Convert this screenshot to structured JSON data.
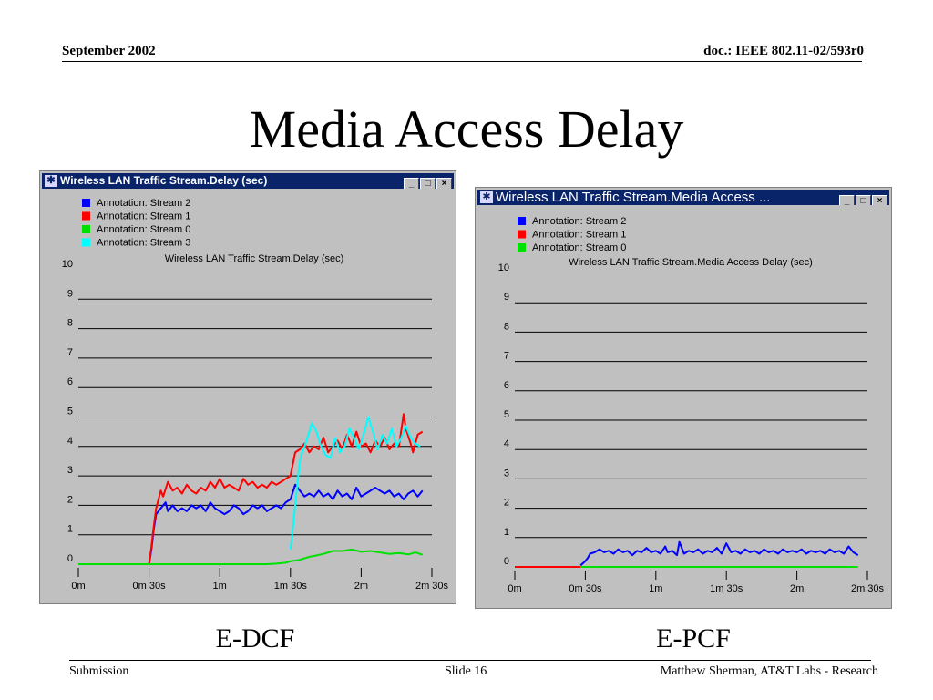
{
  "slide": {
    "header_left": "September 2002",
    "header_right": "doc.: IEEE 802.11-02/593r0",
    "title": "Media Access Delay",
    "footer_left": "Submission",
    "footer_center": "Slide 16",
    "footer_right": "Matthew Sherman, AT&T Labs - Research"
  },
  "windows": {
    "left": {
      "title": "Wireless LAN Traffic Stream.Delay (sec)",
      "caption": "E-DCF",
      "buttons": [
        "_",
        "□",
        "×"
      ]
    },
    "right": {
      "title": "Wireless LAN Traffic Stream.Media Access ...",
      "caption": "E-PCF",
      "buttons": [
        "_",
        "□",
        "×"
      ]
    }
  },
  "colors": {
    "stream2": "#0000ff",
    "stream1": "#ff0000",
    "stream0": "#00e000",
    "stream3": "#00ffff",
    "window_title": "#0a246a",
    "window_face": "#c0c0c0"
  },
  "chart_data": [
    {
      "type": "line",
      "title": "Wireless LAN Traffic Stream.Delay (sec)",
      "ylim": [
        0,
        10
      ],
      "xlim": [
        0,
        150
      ],
      "x_ticks": [
        0,
        30,
        60,
        90,
        120,
        150
      ],
      "x_tick_labels": [
        "0m",
        "0m 30s",
        "1m",
        "1m 30s",
        "2m",
        "2m 30s"
      ],
      "y_ticks": [
        0,
        1,
        2,
        3,
        4,
        5,
        6,
        7,
        8,
        9,
        10
      ],
      "grid": true,
      "legend_position": "top-left",
      "series": [
        {
          "name": "Annotation:  Stream 2",
          "color": "#0000ff",
          "points": [
            [
              30,
              0
            ],
            [
              31,
              0.5
            ],
            [
              32,
              1.2
            ],
            [
              33,
              1.7
            ],
            [
              35,
              1.9
            ],
            [
              37,
              2.1
            ],
            [
              38,
              1.8
            ],
            [
              40,
              2.0
            ],
            [
              42,
              1.8
            ],
            [
              44,
              1.9
            ],
            [
              46,
              1.8
            ],
            [
              48,
              2.0
            ],
            [
              50,
              1.9
            ],
            [
              52,
              2.0
            ],
            [
              54,
              1.8
            ],
            [
              56,
              2.1
            ],
            [
              58,
              1.9
            ],
            [
              60,
              1.8
            ],
            [
              62,
              1.7
            ],
            [
              64,
              1.8
            ],
            [
              66,
              2.0
            ],
            [
              68,
              1.9
            ],
            [
              70,
              1.7
            ],
            [
              72,
              1.8
            ],
            [
              74,
              2.0
            ],
            [
              76,
              1.9
            ],
            [
              78,
              2.0
            ],
            [
              80,
              1.8
            ],
            [
              82,
              1.9
            ],
            [
              84,
              2.0
            ],
            [
              86,
              1.9
            ],
            [
              88,
              2.1
            ],
            [
              90,
              2.2
            ],
            [
              92,
              2.7
            ],
            [
              94,
              2.5
            ],
            [
              96,
              2.3
            ],
            [
              98,
              2.4
            ],
            [
              100,
              2.3
            ],
            [
              102,
              2.5
            ],
            [
              104,
              2.3
            ],
            [
              106,
              2.4
            ],
            [
              108,
              2.2
            ],
            [
              110,
              2.5
            ],
            [
              112,
              2.3
            ],
            [
              114,
              2.4
            ],
            [
              116,
              2.2
            ],
            [
              118,
              2.6
            ],
            [
              120,
              2.3
            ],
            [
              122,
              2.4
            ],
            [
              124,
              2.5
            ],
            [
              126,
              2.6
            ],
            [
              128,
              2.5
            ],
            [
              130,
              2.4
            ],
            [
              132,
              2.5
            ],
            [
              134,
              2.3
            ],
            [
              136,
              2.4
            ],
            [
              138,
              2.2
            ],
            [
              140,
              2.4
            ],
            [
              142,
              2.5
            ],
            [
              144,
              2.3
            ],
            [
              146,
              2.5
            ]
          ]
        },
        {
          "name": "Annotation:  Stream 1",
          "color": "#ff0000",
          "points": [
            [
              0,
              0
            ],
            [
              30,
              0
            ],
            [
              31,
              0.6
            ],
            [
              32,
              1.3
            ],
            [
              33,
              1.9
            ],
            [
              35,
              2.5
            ],
            [
              36,
              2.3
            ],
            [
              38,
              2.8
            ],
            [
              40,
              2.5
            ],
            [
              42,
              2.6
            ],
            [
              44,
              2.4
            ],
            [
              46,
              2.7
            ],
            [
              48,
              2.5
            ],
            [
              50,
              2.4
            ],
            [
              52,
              2.6
            ],
            [
              54,
              2.5
            ],
            [
              56,
              2.8
            ],
            [
              58,
              2.6
            ],
            [
              60,
              2.9
            ],
            [
              62,
              2.6
            ],
            [
              64,
              2.7
            ],
            [
              66,
              2.6
            ],
            [
              68,
              2.5
            ],
            [
              70,
              2.9
            ],
            [
              72,
              2.7
            ],
            [
              74,
              2.8
            ],
            [
              76,
              2.6
            ],
            [
              78,
              2.7
            ],
            [
              80,
              2.6
            ],
            [
              82,
              2.8
            ],
            [
              84,
              2.7
            ],
            [
              86,
              2.8
            ],
            [
              88,
              2.9
            ],
            [
              90,
              3.0
            ],
            [
              92,
              3.8
            ],
            [
              94,
              3.9
            ],
            [
              96,
              4.1
            ],
            [
              98,
              3.8
            ],
            [
              100,
              4.0
            ],
            [
              102,
              3.9
            ],
            [
              104,
              4.3
            ],
            [
              106,
              3.8
            ],
            [
              108,
              4.0
            ],
            [
              110,
              4.2
            ],
            [
              112,
              3.9
            ],
            [
              114,
              4.4
            ],
            [
              116,
              4.0
            ],
            [
              118,
              4.5
            ],
            [
              120,
              4.0
            ],
            [
              122,
              4.1
            ],
            [
              124,
              3.8
            ],
            [
              126,
              4.2
            ],
            [
              128,
              4.0
            ],
            [
              130,
              4.3
            ],
            [
              132,
              3.9
            ],
            [
              134,
              4.1
            ],
            [
              136,
              4.0
            ],
            [
              138,
              5.1
            ],
            [
              139,
              4.6
            ],
            [
              141,
              4.1
            ],
            [
              142,
              3.8
            ],
            [
              144,
              4.4
            ],
            [
              146,
              4.5
            ]
          ]
        },
        {
          "name": "Annotation:  Stream 0",
          "color": "#00e000",
          "points": [
            [
              0,
              0
            ],
            [
              30,
              0
            ],
            [
              40,
              0
            ],
            [
              60,
              0
            ],
            [
              80,
              0
            ],
            [
              84,
              0.02
            ],
            [
              88,
              0.05
            ],
            [
              90,
              0.1
            ],
            [
              94,
              0.15
            ],
            [
              96,
              0.2
            ],
            [
              98,
              0.25
            ],
            [
              100,
              0.28
            ],
            [
              104,
              0.35
            ],
            [
              108,
              0.45
            ],
            [
              112,
              0.45
            ],
            [
              116,
              0.5
            ],
            [
              120,
              0.42
            ],
            [
              124,
              0.45
            ],
            [
              128,
              0.4
            ],
            [
              132,
              0.35
            ],
            [
              136,
              0.38
            ],
            [
              140,
              0.33
            ],
            [
              143,
              0.4
            ],
            [
              146,
              0.32
            ]
          ]
        },
        {
          "name": "Annotation:  Stream 3",
          "color": "#00ffff",
          "points": [
            [
              90,
              0.5
            ],
            [
              91,
              1.2
            ],
            [
              92,
              2.0
            ],
            [
              93,
              2.8
            ],
            [
              94,
              3.5
            ],
            [
              95,
              3.8
            ],
            [
              96,
              4.0
            ],
            [
              98,
              4.5
            ],
            [
              99,
              4.8
            ],
            [
              101,
              4.5
            ],
            [
              103,
              4.0
            ],
            [
              105,
              3.7
            ],
            [
              107,
              3.6
            ],
            [
              109,
              4.3
            ],
            [
              111,
              3.8
            ],
            [
              113,
              4.0
            ],
            [
              115,
              4.6
            ],
            [
              117,
              4.3
            ],
            [
              119,
              3.9
            ],
            [
              121,
              4.4
            ],
            [
              123,
              5.0
            ],
            [
              125,
              4.5
            ],
            [
              127,
              3.9
            ],
            [
              129,
              4.4
            ],
            [
              131,
              4.1
            ],
            [
              133,
              4.6
            ],
            [
              135,
              4.0
            ],
            [
              137,
              4.3
            ],
            [
              139,
              4.7
            ],
            [
              141,
              4.3
            ],
            [
              143,
              4.1
            ],
            [
              145,
              4.0
            ]
          ]
        }
      ]
    },
    {
      "type": "line",
      "title": "Wireless LAN Traffic Stream.Media Access Delay (sec)",
      "ylim": [
        0,
        10
      ],
      "xlim": [
        0,
        150
      ],
      "x_ticks": [
        0,
        30,
        60,
        90,
        120,
        150
      ],
      "x_tick_labels": [
        "0m",
        "0m 30s",
        "1m",
        "1m 30s",
        "2m",
        "2m 30s"
      ],
      "y_ticks": [
        0,
        1,
        2,
        3,
        4,
        5,
        6,
        7,
        8,
        9,
        10
      ],
      "grid": true,
      "legend_position": "top-left",
      "series": [
        {
          "name": "Annotation:  Stream 2",
          "color": "#0000ff",
          "points": [
            [
              28,
              0.05
            ],
            [
              30,
              0.2
            ],
            [
              31,
              0.3
            ],
            [
              32,
              0.45
            ],
            [
              34,
              0.5
            ],
            [
              36,
              0.6
            ],
            [
              38,
              0.5
            ],
            [
              40,
              0.55
            ],
            [
              42,
              0.45
            ],
            [
              44,
              0.6
            ],
            [
              46,
              0.5
            ],
            [
              48,
              0.55
            ],
            [
              50,
              0.4
            ],
            [
              52,
              0.55
            ],
            [
              54,
              0.5
            ],
            [
              56,
              0.65
            ],
            [
              58,
              0.5
            ],
            [
              60,
              0.55
            ],
            [
              62,
              0.45
            ],
            [
              64,
              0.7
            ],
            [
              65,
              0.5
            ],
            [
              67,
              0.55
            ],
            [
              69,
              0.4
            ],
            [
              70,
              0.85
            ],
            [
              72,
              0.45
            ],
            [
              74,
              0.55
            ],
            [
              76,
              0.5
            ],
            [
              78,
              0.6
            ],
            [
              80,
              0.45
            ],
            [
              82,
              0.55
            ],
            [
              84,
              0.5
            ],
            [
              86,
              0.65
            ],
            [
              88,
              0.45
            ],
            [
              90,
              0.8
            ],
            [
              92,
              0.5
            ],
            [
              94,
              0.55
            ],
            [
              96,
              0.45
            ],
            [
              98,
              0.6
            ],
            [
              100,
              0.5
            ],
            [
              102,
              0.55
            ],
            [
              104,
              0.45
            ],
            [
              106,
              0.6
            ],
            [
              108,
              0.5
            ],
            [
              110,
              0.55
            ],
            [
              112,
              0.45
            ],
            [
              114,
              0.6
            ],
            [
              116,
              0.5
            ],
            [
              118,
              0.55
            ],
            [
              120,
              0.5
            ],
            [
              122,
              0.6
            ],
            [
              124,
              0.45
            ],
            [
              126,
              0.55
            ],
            [
              128,
              0.5
            ],
            [
              130,
              0.55
            ],
            [
              132,
              0.45
            ],
            [
              134,
              0.6
            ],
            [
              136,
              0.5
            ],
            [
              138,
              0.55
            ],
            [
              140,
              0.45
            ],
            [
              142,
              0.7
            ],
            [
              144,
              0.5
            ],
            [
              146,
              0.4
            ]
          ]
        },
        {
          "name": "Annotation:  Stream 1",
          "color": "#ff0000",
          "points": [
            [
              0,
              0
            ],
            [
              28,
              0
            ]
          ]
        },
        {
          "name": "Annotation:  Stream 0",
          "color": "#00e000",
          "points": [
            [
              28,
              0
            ],
            [
              60,
              0
            ],
            [
              100,
              0
            ],
            [
              146,
              0
            ]
          ]
        }
      ]
    }
  ]
}
